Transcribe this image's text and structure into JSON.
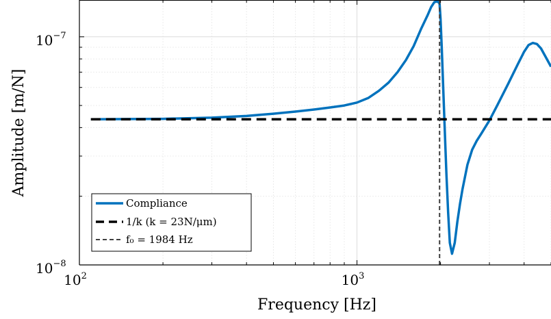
{
  "chart_data": {
    "type": "line",
    "xlabel": "Frequency [Hz]",
    "ylabel": "Amplitude [m/N]",
    "xscale": "log",
    "yscale": "log",
    "xlim": [
      100,
      5000
    ],
    "ylim": [
      1e-08,
      1.45e-07
    ],
    "grid": true,
    "legend_position": "bottom-left",
    "x_ticks": [
      {
        "value": 100,
        "base": "10",
        "exp": "2"
      },
      {
        "value": 1000,
        "base": "10",
        "exp": "3"
      }
    ],
    "y_ticks": [
      {
        "value": 1e-08,
        "base": "10",
        "exp": "−8"
      },
      {
        "value": 1e-07,
        "base": "10",
        "exp": "−7"
      }
    ],
    "series": [
      {
        "name": "Compliance",
        "color": "#0072BD",
        "style": "solid",
        "x": [
          110,
          150,
          200,
          300,
          400,
          500,
          600,
          700,
          800,
          900,
          1000,
          1100,
          1200,
          1300,
          1400,
          1500,
          1600,
          1700,
          1800,
          1850,
          1900,
          1950,
          1984,
          2000,
          2020,
          2050,
          2080,
          2100,
          2130,
          2160,
          2200,
          2250,
          2300,
          2350,
          2400,
          2500,
          2600,
          2700,
          2800,
          3000,
          3200,
          3500,
          3800,
          4000,
          4150,
          4300,
          4450,
          4600,
          4800,
          5000
        ],
        "y": [
          4.35e-08,
          4.36e-08,
          4.37e-08,
          4.42e-08,
          4.5e-08,
          4.6e-08,
          4.7e-08,
          4.8e-08,
          4.9e-08,
          5e-08,
          5.15e-08,
          5.4e-08,
          5.8e-08,
          6.3e-08,
          7e-08,
          7.9e-08,
          9.1e-08,
          1.08e-07,
          1.25e-07,
          1.35e-07,
          1.42e-07,
          1.43e-07,
          1.4e-07,
          1.2e-07,
          9e-08,
          5.5e-08,
          3.4e-08,
          2.5e-08,
          1.7e-08,
          1.25e-08,
          1.12e-08,
          1.25e-08,
          1.55e-08,
          1.85e-08,
          2.15e-08,
          2.75e-08,
          3.2e-08,
          3.5e-08,
          3.75e-08,
          4.3e-08,
          5e-08,
          6.2e-08,
          7.6e-08,
          8.6e-08,
          9.2e-08,
          9.4e-08,
          9.3e-08,
          8.9e-08,
          8.1e-08,
          7.4e-08
        ]
      },
      {
        "name": "1/k (k = 23N/μm)",
        "color": "#000000",
        "style": "dashed",
        "x": [
          110,
          5000
        ],
        "y": [
          4.35e-08,
          4.35e-08
        ]
      },
      {
        "name": "f₀ = 1984 Hz",
        "color": "#404040",
        "style": "dashed-vertical",
        "x": [
          1984,
          1984
        ],
        "y": [
          1e-08,
          1.45e-07
        ]
      }
    ]
  }
}
